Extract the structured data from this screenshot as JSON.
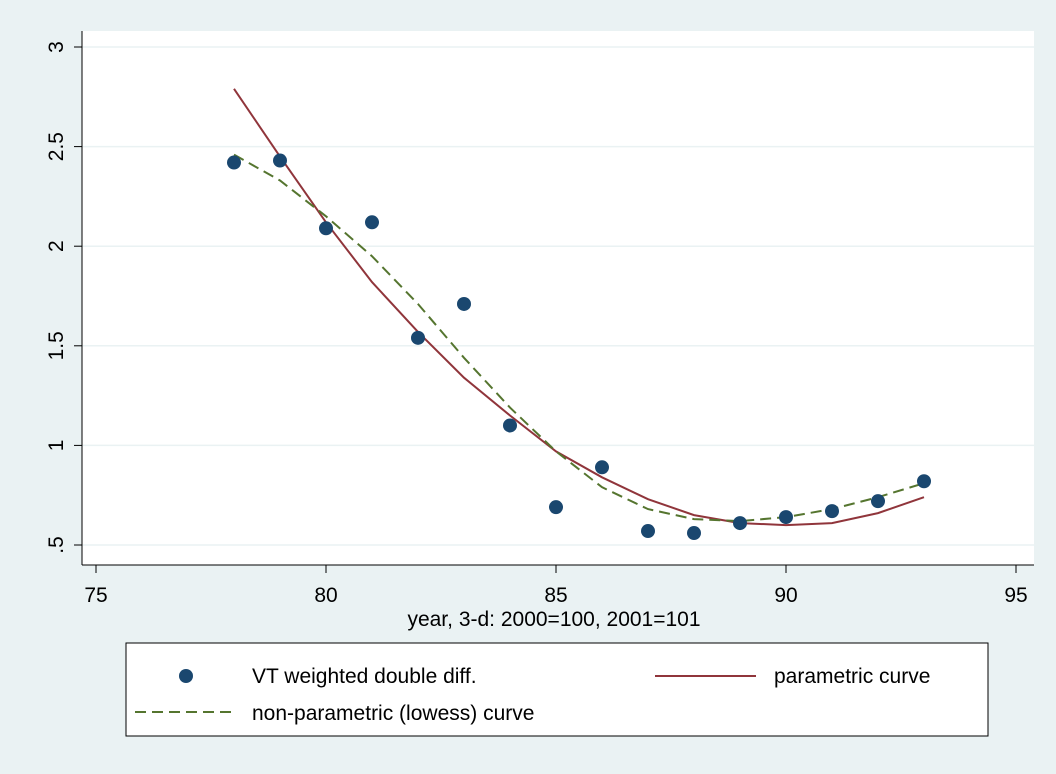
{
  "chart_data": {
    "type": "scatter",
    "xlabel": "year, 3-d: 2000=100, 2001=101",
    "ylabel": "",
    "xlim": [
      75,
      95
    ],
    "ylim": [
      0.5,
      3.0
    ],
    "x_ticks": [
      75,
      80,
      85,
      90,
      95
    ],
    "x_tick_labels": [
      "75",
      "80",
      "85",
      "90",
      "95"
    ],
    "y_ticks": [
      0.5,
      1.0,
      1.5,
      2.0,
      2.5,
      3.0
    ],
    "y_tick_labels": [
      ".5",
      "1",
      "1.5",
      "2",
      "2.5",
      "3"
    ],
    "grid": "horizontal",
    "legend_position": "bottom",
    "series": [
      {
        "name": "VT weighted double diff.",
        "style": "marker",
        "color": "#1a476f",
        "x": [
          78,
          79,
          80,
          81,
          82,
          83,
          84,
          85,
          86,
          87,
          88,
          89,
          90,
          91,
          92,
          93
        ],
        "y": [
          2.42,
          2.43,
          2.09,
          2.12,
          1.54,
          1.71,
          1.1,
          0.69,
          0.89,
          0.57,
          0.56,
          0.61,
          0.64,
          0.67,
          0.72,
          0.82
        ]
      },
      {
        "name": "parametric curve",
        "style": "solid",
        "color": "#90353b",
        "x": [
          78,
          79,
          80,
          81,
          82,
          83,
          84,
          85,
          86,
          87,
          88,
          89,
          90,
          91,
          92,
          93
        ],
        "y": [
          2.79,
          2.45,
          2.12,
          1.82,
          1.57,
          1.34,
          1.15,
          0.97,
          0.84,
          0.73,
          0.65,
          0.61,
          0.6,
          0.61,
          0.66,
          0.74
        ]
      },
      {
        "name": "non-parametric (lowess) curve",
        "style": "dashed",
        "color": "#55752f",
        "x": [
          78,
          79,
          80,
          81,
          82,
          83,
          84,
          85,
          86,
          87,
          88,
          89,
          90,
          91,
          92,
          93
        ],
        "y": [
          2.46,
          2.33,
          2.15,
          1.95,
          1.71,
          1.44,
          1.19,
          0.97,
          0.79,
          0.68,
          0.63,
          0.62,
          0.64,
          0.68,
          0.74,
          0.81
        ]
      }
    ]
  }
}
